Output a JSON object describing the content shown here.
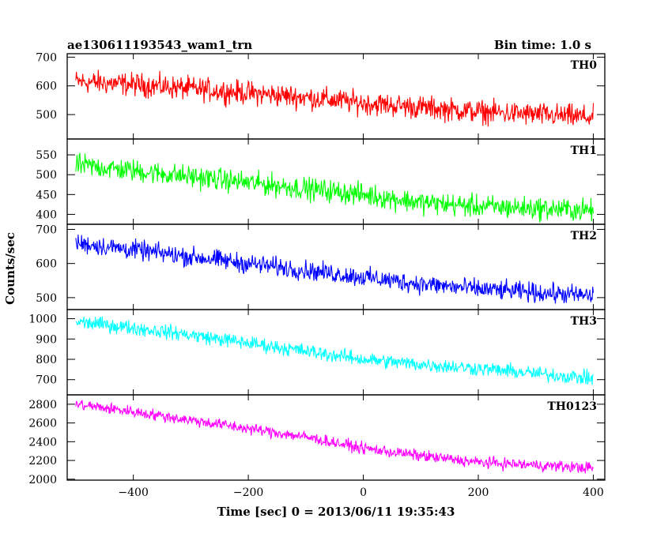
{
  "header": {
    "left_title": "ae130611193543_wam1_trn",
    "right_title": "Bin time: 1.0 s"
  },
  "axes": {
    "xlabel": "Time [sec] 0 = 2013/06/11 19:35:43",
    "ylabel": "Counts/sec"
  },
  "chart_data": [
    {
      "type": "line",
      "name": "TH0",
      "color": "#ff0000",
      "xlim": [
        -515,
        420
      ],
      "ylim": [
        415,
        712
      ],
      "yticks": [
        500,
        600,
        700
      ],
      "xticks": [
        -400,
        -200,
        0,
        200,
        400
      ],
      "show_xtick_labels": false,
      "x": [
        -500,
        -400,
        -300,
        -200,
        -100,
        0,
        100,
        200,
        300,
        400
      ],
      "y": [
        615,
        605,
        590,
        575,
        560,
        540,
        525,
        510,
        500,
        490
      ],
      "noise_amplitude": 40
    },
    {
      "type": "line",
      "name": "TH1",
      "color": "#00ff00",
      "xlim": [
        -515,
        420
      ],
      "ylim": [
        375,
        590
      ],
      "yticks": [
        400,
        450,
        500,
        550
      ],
      "xticks": [
        -400,
        -200,
        0,
        200,
        400
      ],
      "show_xtick_labels": false,
      "x": [
        -500,
        -400,
        -300,
        -200,
        -100,
        0,
        100,
        200,
        300,
        400
      ],
      "y": [
        525,
        510,
        495,
        480,
        465,
        450,
        430,
        420,
        415,
        410
      ],
      "noise_amplitude": 28
    },
    {
      "type": "line",
      "name": "TH2",
      "color": "#0000ff",
      "xlim": [
        -515,
        420
      ],
      "ylim": [
        465,
        715
      ],
      "yticks": [
        500,
        600,
        700
      ],
      "xticks": [
        -400,
        -200,
        0,
        200,
        400
      ],
      "show_xtick_labels": false,
      "x": [
        -500,
        -400,
        -300,
        -200,
        -100,
        0,
        100,
        200,
        300,
        400
      ],
      "y": [
        660,
        640,
        620,
        600,
        580,
        560,
        540,
        525,
        515,
        505
      ],
      "noise_amplitude": 28
    },
    {
      "type": "line",
      "name": "TH3",
      "color": "#00ffff",
      "xlim": [
        -515,
        420
      ],
      "ylim": [
        625,
        1045
      ],
      "yticks": [
        700,
        800,
        900,
        1000
      ],
      "xticks": [
        -400,
        -200,
        0,
        200,
        400
      ],
      "show_xtick_labels": false,
      "x": [
        -500,
        -400,
        -300,
        -200,
        -100,
        0,
        100,
        200,
        300,
        400
      ],
      "y": [
        985,
        955,
        920,
        880,
        840,
        800,
        775,
        755,
        730,
        705
      ],
      "noise_amplitude": 35
    },
    {
      "type": "line",
      "name": "TH0123",
      "color": "#ff00ff",
      "xlim": [
        -515,
        420
      ],
      "ylim": [
        1990,
        2900
      ],
      "yticks": [
        2000,
        2200,
        2400,
        2600,
        2800
      ],
      "xticks": [
        -400,
        -200,
        0,
        200,
        400
      ],
      "show_xtick_labels": true,
      "x": [
        -500,
        -400,
        -300,
        -200,
        -100,
        0,
        100,
        200,
        300,
        400
      ],
      "y": [
        2800,
        2720,
        2630,
        2540,
        2450,
        2330,
        2250,
        2180,
        2150,
        2120
      ],
      "noise_amplitude": 60
    }
  ]
}
